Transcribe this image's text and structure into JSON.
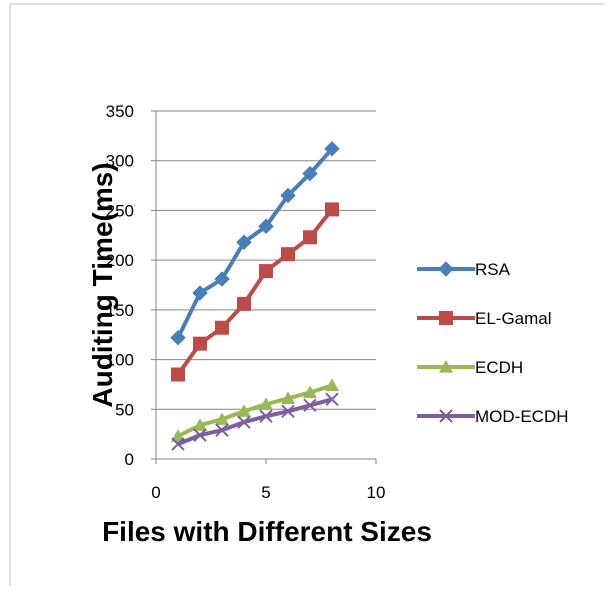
{
  "chart_data": {
    "type": "line",
    "title": "",
    "xlabel": "Files with Different Sizes",
    "ylabel": "Auditing Time(ms)",
    "xlim": [
      0,
      10
    ],
    "ylim": [
      0,
      350
    ],
    "x_ticks": [
      0,
      5,
      10
    ],
    "y_ticks": [
      0,
      50,
      100,
      150,
      200,
      250,
      300,
      350
    ],
    "grid": "horizontal",
    "legend_position": "right",
    "series": [
      {
        "name": "RSA",
        "color": "#4a7ebb",
        "marker": "diamond",
        "points": [
          [
            1,
            122
          ],
          [
            2,
            167
          ],
          [
            3,
            181
          ],
          [
            4,
            218
          ],
          [
            5,
            234
          ],
          [
            6,
            265
          ],
          [
            7,
            287
          ],
          [
            8,
            312
          ]
        ]
      },
      {
        "name": "EL-Gamal",
        "color": "#be4b48",
        "marker": "square",
        "points": [
          [
            1,
            85
          ],
          [
            2,
            116
          ],
          [
            3,
            132
          ],
          [
            4,
            156
          ],
          [
            5,
            189
          ],
          [
            6,
            206
          ],
          [
            7,
            223
          ],
          [
            8,
            251
          ]
        ]
      },
      {
        "name": "ECDH",
        "color": "#98b954",
        "marker": "triangle",
        "points": [
          [
            1,
            23
          ],
          [
            2,
            34
          ],
          [
            3,
            40
          ],
          [
            4,
            48
          ],
          [
            5,
            55
          ],
          [
            6,
            61
          ],
          [
            7,
            67
          ],
          [
            8,
            74
          ]
        ]
      },
      {
        "name": "MOD-ECDH",
        "color": "#7d5fa0",
        "marker": "x",
        "points": [
          [
            1,
            15
          ],
          [
            2,
            24
          ],
          [
            3,
            29
          ],
          [
            4,
            37
          ],
          [
            5,
            43
          ],
          [
            6,
            48
          ],
          [
            7,
            54
          ],
          [
            8,
            60
          ]
        ]
      }
    ]
  }
}
